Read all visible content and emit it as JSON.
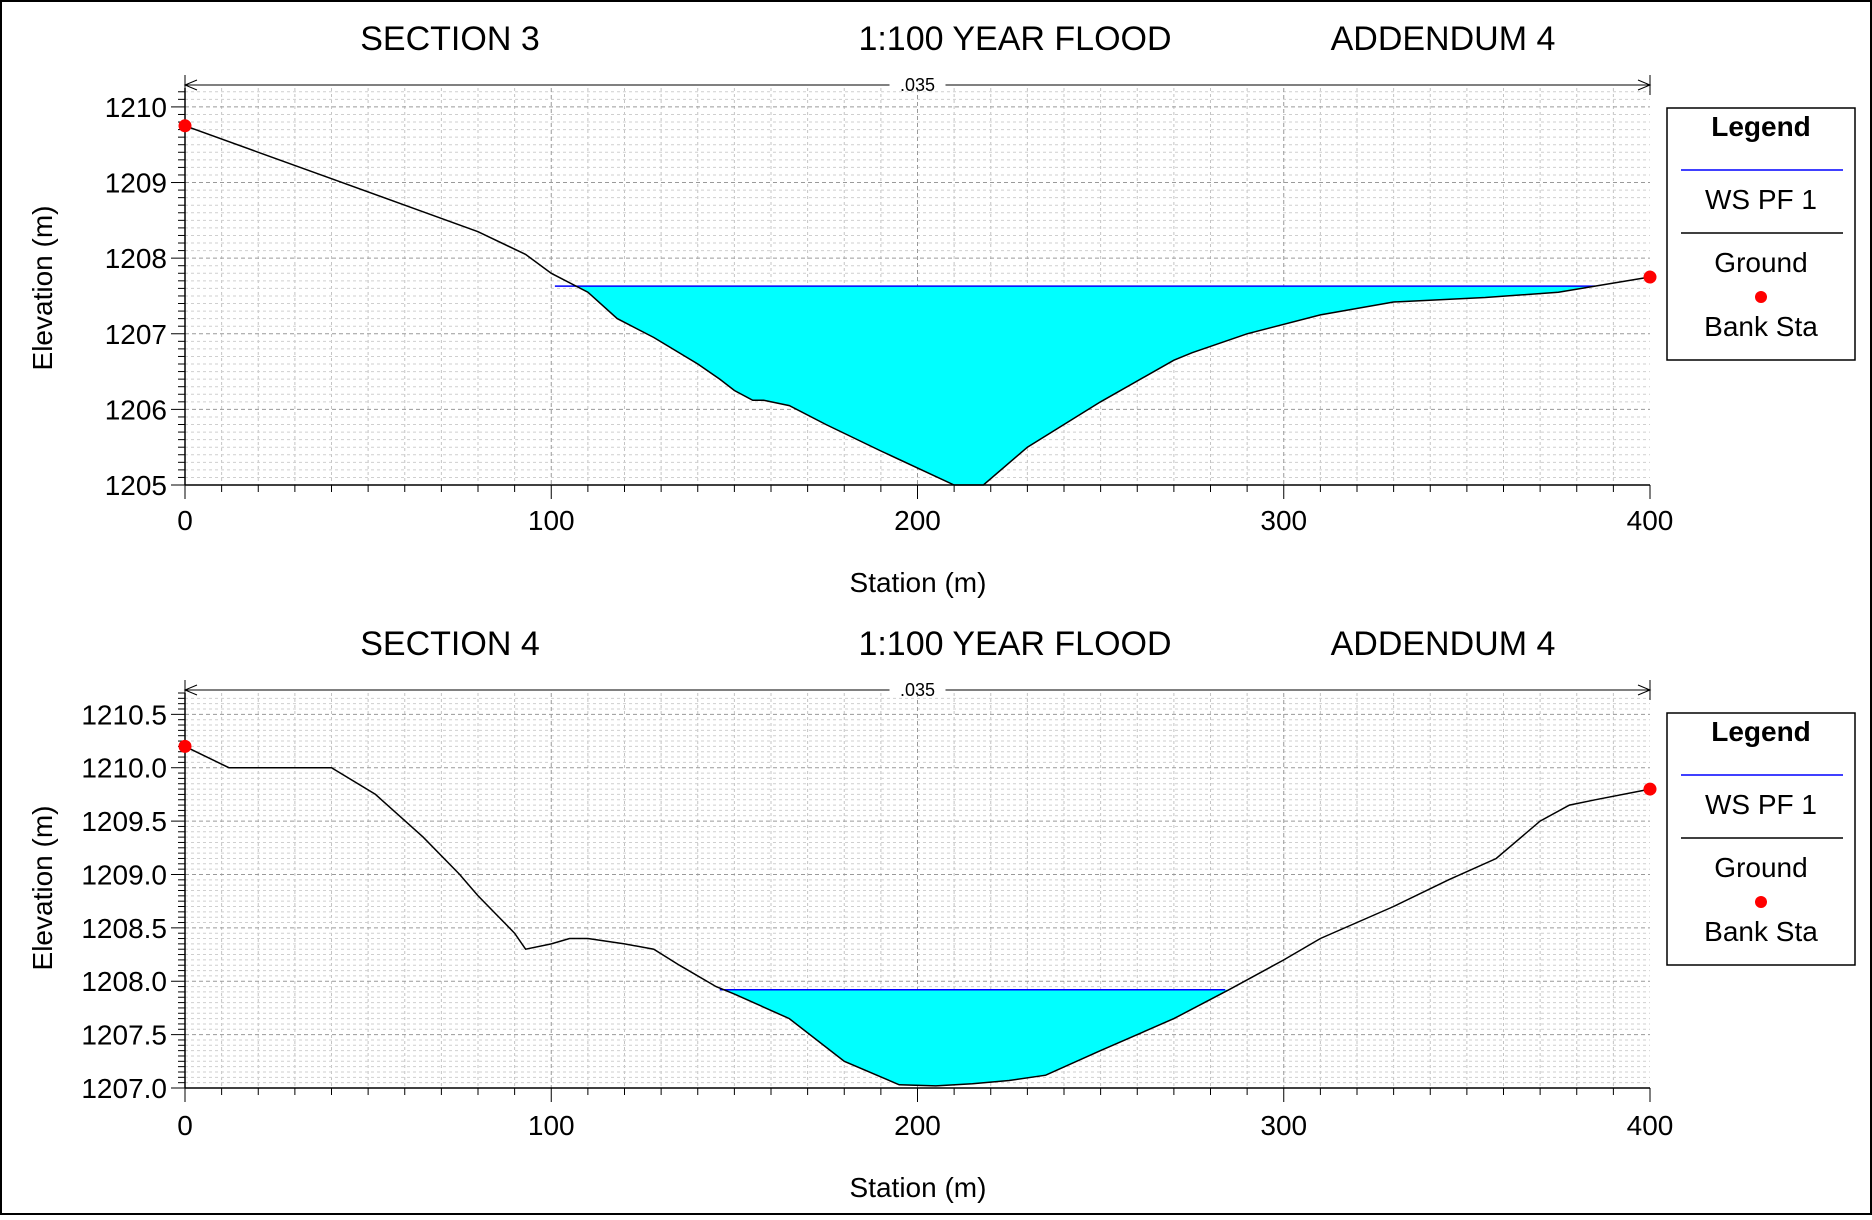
{
  "chart_data": [
    {
      "type": "area",
      "title_left": "SECTION 3",
      "title_center": "1:100 YEAR FLOOD",
      "title_right": "ADDENDUM  4",
      "xlabel": "Station (m)",
      "ylabel": "Elevation (m)",
      "xlim": [
        0,
        400
      ],
      "ylim": [
        1205,
        1210.25
      ],
      "x_ticks": [
        0,
        100,
        200,
        300,
        400
      ],
      "y_ticks": [
        1205,
        1206,
        1207,
        1208,
        1209,
        1210
      ],
      "y_tick_labels": [
        "1205",
        "1206",
        "1207",
        "1208",
        "1209",
        "1210"
      ],
      "manning_label": ".035",
      "manning_range": [
        0,
        400
      ],
      "grid": true,
      "legend": {
        "title": "Legend",
        "position": "right",
        "entries": [
          {
            "label": "WS PF 1",
            "style": "line",
            "color": "#0000ff"
          },
          {
            "label": "Ground",
            "style": "line",
            "color": "#000000"
          },
          {
            "label": "Bank Sta",
            "style": "marker",
            "color": "#ff0000"
          }
        ]
      },
      "series": [
        {
          "name": "Ground",
          "x": [
            0,
            20,
            40,
            60,
            80,
            93,
            100,
            110,
            118,
            128,
            140,
            146,
            150,
            155,
            158,
            165,
            175,
            190,
            210,
            218,
            230,
            250,
            270,
            275,
            290,
            310,
            330,
            355,
            375,
            385,
            400
          ],
          "y": [
            1209.75,
            1209.4,
            1209.05,
            1208.7,
            1208.35,
            1208.05,
            1207.8,
            1207.55,
            1207.2,
            1206.95,
            1206.6,
            1206.4,
            1206.25,
            1206.12,
            1206.12,
            1206.05,
            1205.8,
            1205.45,
            1205.0,
            1205.0,
            1205.5,
            1206.1,
            1206.65,
            1206.75,
            1207.0,
            1207.25,
            1207.42,
            1207.48,
            1207.55,
            1207.63,
            1207.75
          ]
        },
        {
          "name": "WS PF 1",
          "elevation": 1207.63,
          "x_range": [
            101,
            385
          ]
        },
        {
          "name": "Bank Sta",
          "x": [
            0,
            400
          ],
          "y": [
            1209.75,
            1207.75
          ]
        }
      ]
    },
    {
      "type": "area",
      "title_left": "SECTION 4",
      "title_center": "1:100 YEAR FLOOD",
      "title_right": "ADDENDUM  4",
      "xlabel": "Station (m)",
      "ylabel": "Elevation (m)",
      "xlim": [
        0,
        400
      ],
      "ylim": [
        1207.0,
        1210.7
      ],
      "x_ticks": [
        0,
        100,
        200,
        300,
        400
      ],
      "y_ticks": [
        1207.0,
        1207.5,
        1208.0,
        1208.5,
        1209.0,
        1209.5,
        1210.0,
        1210.5
      ],
      "y_tick_labels": [
        "1207.0",
        "1207.5",
        "1208.0",
        "1208.5",
        "1209.0",
        "1209.5",
        "1210.0",
        "1210.5"
      ],
      "manning_label": ".035",
      "manning_range": [
        0,
        400
      ],
      "grid": true,
      "legend": {
        "title": "Legend",
        "position": "right",
        "entries": [
          {
            "label": "WS PF 1",
            "style": "line",
            "color": "#0000ff"
          },
          {
            "label": "Ground",
            "style": "line",
            "color": "#000000"
          },
          {
            "label": "Bank Sta",
            "style": "marker",
            "color": "#ff0000"
          }
        ]
      },
      "series": [
        {
          "name": "Ground",
          "x": [
            0,
            12,
            40,
            52,
            65,
            75,
            80,
            90,
            93,
            100,
            105,
            110,
            120,
            128,
            135,
            145,
            150,
            165,
            180,
            195,
            205,
            215,
            225,
            235,
            250,
            270,
            285,
            300,
            310,
            330,
            345,
            358,
            370,
            378,
            385,
            400
          ],
          "y": [
            1210.2,
            1210.0,
            1210.0,
            1209.75,
            1209.35,
            1209.0,
            1208.8,
            1208.45,
            1208.3,
            1208.35,
            1208.4,
            1208.4,
            1208.35,
            1208.3,
            1208.15,
            1207.95,
            1207.88,
            1207.65,
            1207.25,
            1207.03,
            1207.02,
            1207.04,
            1207.07,
            1207.12,
            1207.35,
            1207.65,
            1207.92,
            1208.2,
            1208.4,
            1208.7,
            1208.95,
            1209.15,
            1209.5,
            1209.65,
            1209.7,
            1209.8
          ]
        },
        {
          "name": "WS PF 1",
          "elevation": 1207.92,
          "x_range": [
            146,
            284
          ]
        },
        {
          "name": "Bank Sta",
          "x": [
            0,
            400
          ],
          "y": [
            1210.2,
            1209.8
          ]
        }
      ]
    }
  ]
}
